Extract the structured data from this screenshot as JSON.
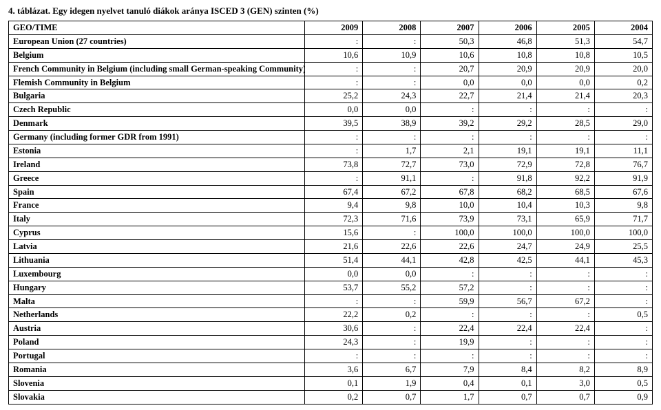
{
  "title": "4. táblázat. Egy idegen nyelvet tanuló diákok aránya ISCED 3 (GEN) szinten (%)",
  "header": {
    "geo": "GEO/TIME",
    "years": [
      "2009",
      "2008",
      "2007",
      "2006",
      "2005",
      "2004"
    ]
  },
  "rows": [
    {
      "geo": "European Union (27 countries)",
      "v": [
        ":",
        ":",
        "50,3",
        "46,8",
        "51,3",
        "54,7"
      ]
    },
    {
      "geo": "Belgium",
      "v": [
        "10,6",
        "10,9",
        "10,6",
        "10,8",
        "10,8",
        "10,5"
      ]
    },
    {
      "geo": "French Community in Belgium (including small German-speaking Community)",
      "v": [
        ":",
        ":",
        "20,7",
        "20,9",
        "20,9",
        "20,0"
      ]
    },
    {
      "geo": "Flemish Community in Belgium",
      "v": [
        ":",
        ":",
        "0,0",
        "0,0",
        "0,0",
        "0,2"
      ]
    },
    {
      "geo": "Bulgaria",
      "v": [
        "25,2",
        "24,3",
        "22,7",
        "21,4",
        "21,4",
        "20,3"
      ]
    },
    {
      "geo": "Czech Republic",
      "v": [
        "0,0",
        "0,0",
        ":",
        ":",
        ":",
        ":"
      ]
    },
    {
      "geo": "Denmark",
      "v": [
        "39,5",
        "38,9",
        "39,2",
        "29,2",
        "28,5",
        "29,0"
      ]
    },
    {
      "geo": "Germany (including former GDR from 1991)",
      "v": [
        ":",
        ":",
        ":",
        ":",
        ":",
        ":"
      ]
    },
    {
      "geo": "Estonia",
      "v": [
        ":",
        "1,7",
        "2,1",
        "19,1",
        "19,1",
        "11,1"
      ]
    },
    {
      "geo": "Ireland",
      "v": [
        "73,8",
        "72,7",
        "73,0",
        "72,9",
        "72,8",
        "76,7"
      ]
    },
    {
      "geo": "Greece",
      "v": [
        ":",
        "91,1",
        ":",
        "91,8",
        "92,2",
        "91,9"
      ]
    },
    {
      "geo": "Spain",
      "v": [
        "67,4",
        "67,2",
        "67,8",
        "68,2",
        "68,5",
        "67,6"
      ]
    },
    {
      "geo": "France",
      "v": [
        "9,4",
        "9,8",
        "10,0",
        "10,4",
        "10,3",
        "9,8"
      ]
    },
    {
      "geo": "Italy",
      "v": [
        "72,3",
        "71,6",
        "73,9",
        "73,1",
        "65,9",
        "71,7"
      ]
    },
    {
      "geo": "Cyprus",
      "v": [
        "15,6",
        ":",
        "100,0",
        "100,0",
        "100,0",
        "100,0"
      ]
    },
    {
      "geo": "Latvia",
      "v": [
        "21,6",
        "22,6",
        "22,6",
        "24,7",
        "24,9",
        "25,5"
      ]
    },
    {
      "geo": "Lithuania",
      "v": [
        "51,4",
        "44,1",
        "42,8",
        "42,5",
        "44,1",
        "45,3"
      ]
    },
    {
      "geo": "Luxembourg",
      "v": [
        "0,0",
        "0,0",
        ":",
        ":",
        ":",
        ":"
      ]
    },
    {
      "geo": "Hungary",
      "v": [
        "53,7",
        "55,2",
        "57,2",
        ":",
        ":",
        ":"
      ]
    },
    {
      "geo": "Malta",
      "v": [
        ":",
        ":",
        "59,9",
        "56,7",
        "67,2",
        ":"
      ]
    },
    {
      "geo": "Netherlands",
      "v": [
        "22,2",
        "0,2",
        ":",
        ":",
        ":",
        "0,5"
      ]
    },
    {
      "geo": "Austria",
      "v": [
        "30,6",
        ":",
        "22,4",
        "22,4",
        "22,4",
        ":"
      ]
    },
    {
      "geo": "Poland",
      "v": [
        "24,3",
        ":",
        "19,9",
        ":",
        ":",
        ":"
      ]
    },
    {
      "geo": "Portugal",
      "v": [
        ":",
        ":",
        ":",
        ":",
        ":",
        ":"
      ]
    },
    {
      "geo": "Romania",
      "v": [
        "3,6",
        "6,7",
        "7,9",
        "8,4",
        "8,2",
        "8,9"
      ]
    },
    {
      "geo": "Slovenia",
      "v": [
        "0,1",
        "1,9",
        "0,4",
        "0,1",
        "3,0",
        "0,5"
      ]
    },
    {
      "geo": "Slovakia",
      "v": [
        "0,2",
        "0,7",
        "1,7",
        "0,7",
        "0,7",
        "0,9"
      ]
    }
  ]
}
